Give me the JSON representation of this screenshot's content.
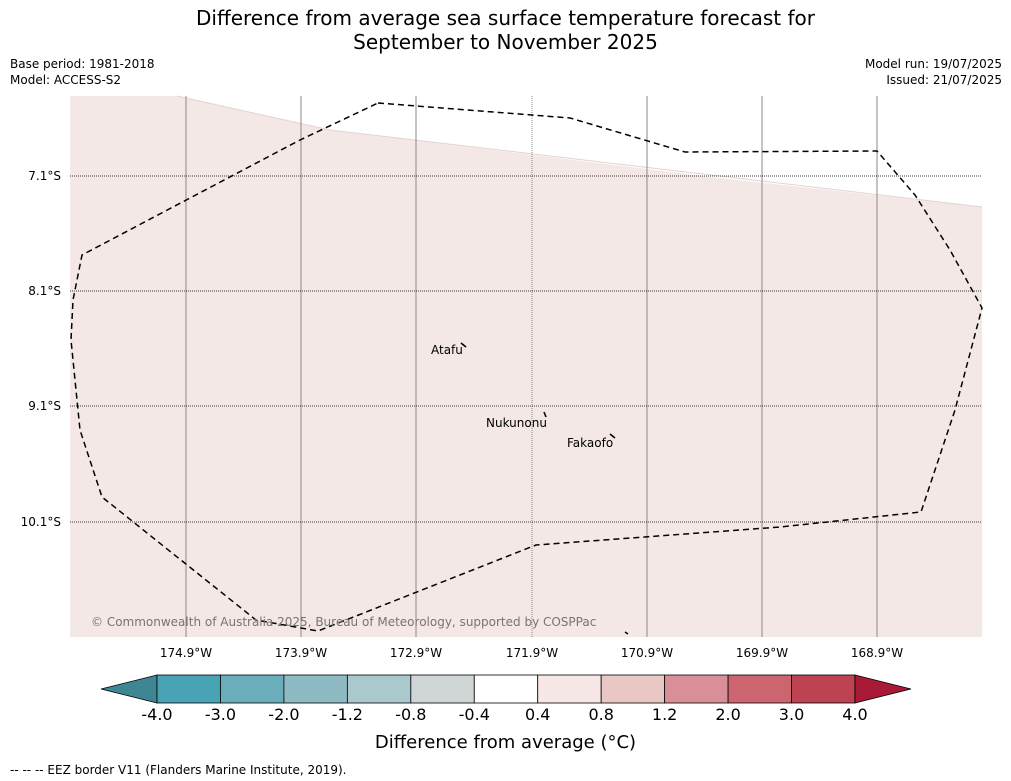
{
  "title_line1": "Difference from average sea surface temperature forecast for",
  "title_line2": "September to November 2025",
  "base_period": "Base period: 1981-2018",
  "model": "Model: ACCESS-S2",
  "model_run": "Model run: 19/07/2025",
  "issued": "Issued: 21/07/2025",
  "lat_labels": [
    "7.1°S",
    "8.1°S",
    "9.1°S",
    "10.1°S"
  ],
  "lon_labels": [
    "174.9°W",
    "173.9°W",
    "172.9°W",
    "171.9°W",
    "170.9°W",
    "169.9°W",
    "168.9°W"
  ],
  "places": [
    "Atafu",
    "Nukunonu",
    "Fakaofo"
  ],
  "copyright": "© Commonwealth of Australia 2025, Bureau of Meteorology, supported by COSPPac",
  "colorbar": {
    "ticks": [
      "-4.0",
      "-3.0",
      "-2.0",
      "-1.2",
      "-0.8",
      "-0.4",
      "0.4",
      "0.8",
      "1.2",
      "2.0",
      "3.0",
      "4.0"
    ],
    "colors": [
      "#3f8694",
      "#48a3b4",
      "#6aaebc",
      "#8ebac3",
      "#a9c9cd",
      "#d0d6d6",
      "#ffffff",
      "#f7e8e7",
      "#e9c7c4",
      "#d98f97",
      "#cd6570",
      "#bd4353",
      "#a81a35"
    ],
    "title": "Difference from average (°C)"
  },
  "map_fill_color": "#f4e8e7",
  "legend_footer": "-- -- -- EEZ border V11 (Flanders Marine Institute, 2019)."
}
